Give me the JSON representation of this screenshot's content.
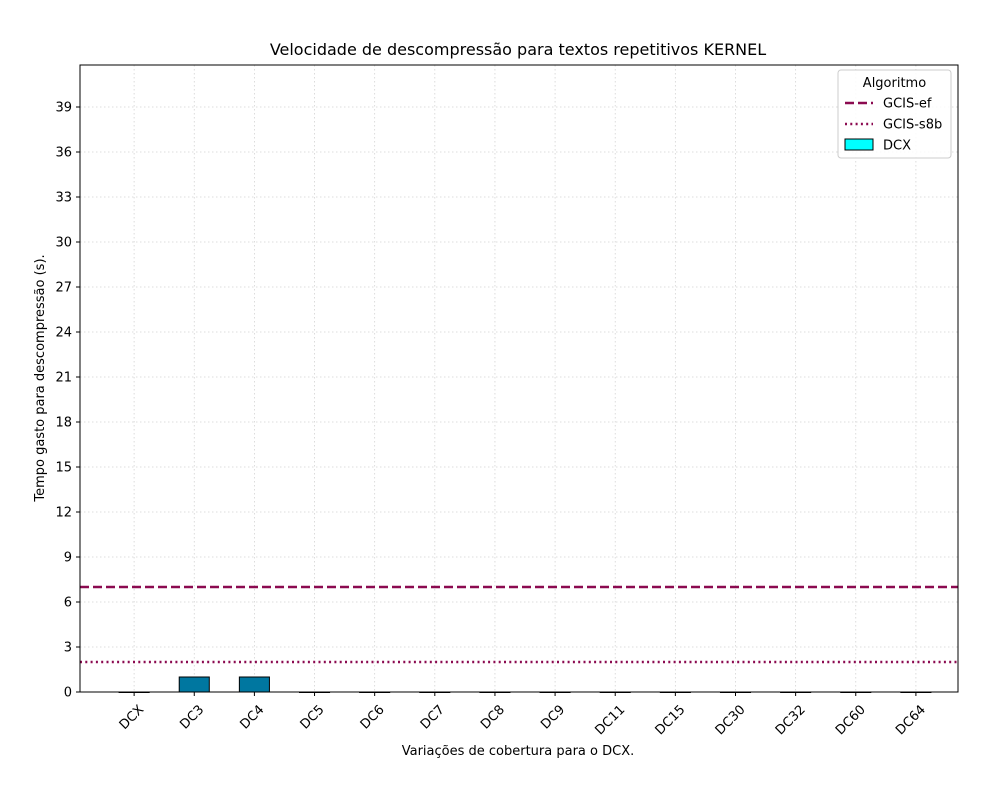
{
  "chart_data": {
    "type": "bar",
    "title": "Velocidade de descompressão para textos repetitivos KERNEL",
    "xlabel": "Variações de cobertura para o DCX.",
    "ylabel": "Tempo gasto para descompressão (s).",
    "categories": [
      "DCX",
      "DC3",
      "DC4",
      "DC5",
      "DC6",
      "DC7",
      "DC8",
      "DC9",
      "DC11",
      "DC15",
      "DC30",
      "DC32",
      "DC60",
      "DC64"
    ],
    "series": [
      {
        "name": "DCX",
        "values": [
          0,
          1,
          1,
          0,
          0,
          0,
          0,
          0,
          0,
          0,
          0,
          0,
          0,
          0
        ],
        "color": "#0077a0",
        "legend_color": "#00ffff"
      }
    ],
    "reference_lines": [
      {
        "name": "GCIS-ef",
        "value": 7,
        "style": "dashed",
        "color": "#8b0a50"
      },
      {
        "name": "GCIS-s8b",
        "value": 2,
        "style": "dotted",
        "color": "#8b0a50"
      }
    ],
    "ylim": [
      0,
      41.8
    ],
    "yticks": [
      0,
      3,
      6,
      9,
      12,
      15,
      18,
      21,
      24,
      27,
      30,
      33,
      36,
      39
    ],
    "grid": true,
    "legend": {
      "title": "Algoritmo",
      "placement": "top-right"
    }
  }
}
